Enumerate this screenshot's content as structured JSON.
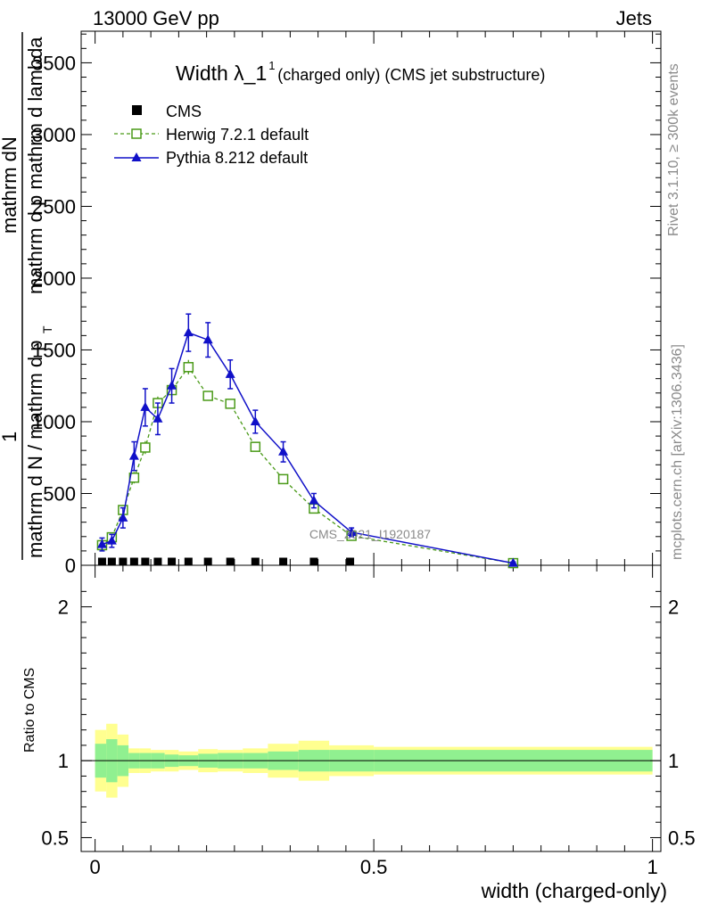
{
  "header": {
    "left": "13000 GeV pp",
    "right": "Jets"
  },
  "side": {
    "rivet": "Rivet 3.1.10, ≥ 300k events",
    "mcplots": "mcplots.cern.ch [arXiv:1306.3436]"
  },
  "colors": {
    "herwig": "#4a9a18",
    "pythia": "#1010c8",
    "band_inner": "#90f090",
    "band_outer": "#ffff90",
    "cms": "#000000"
  },
  "chart_data": [
    {
      "type": "line",
      "title_main": "Width λ_1",
      "title_sup": "1",
      "title_rest": "(charged only) (CMS jet substructure)",
      "ylabel_top": "mathrm dN",
      "ylabel_top2": "mathrm d p mathrm d lambda",
      "ylabel_bottom": "mathrm d N / mathrm d p",
      "ylabel_bottom_sub": "T",
      "ylabel_one": "1",
      "xlabel": "",
      "watermark": "CMS_2021_I1920187",
      "xlim": [
        -0.025,
        1.015
      ],
      "ylim": [
        0,
        3720
      ],
      "yticks": [
        {
          "v": 0,
          "label": "0"
        },
        {
          "v": 500,
          "label": "500"
        },
        {
          "v": 1000,
          "label": "1000"
        },
        {
          "v": 1500,
          "label": "1500"
        },
        {
          "v": 2000,
          "label": "2000"
        },
        {
          "v": 2500,
          "label": "2500"
        },
        {
          "v": 3000,
          "label": "3000"
        },
        {
          "v": 3500,
          "label": "3500"
        }
      ],
      "legend": [
        {
          "name": "CMS",
          "marker": "square-filled"
        },
        {
          "name": "Herwig 7.2.1 default",
          "marker": "square-open"
        },
        {
          "name": "Pythia 8.212 default",
          "marker": "triangle"
        }
      ],
      "series": [
        {
          "name": "CMS",
          "x": [
            0.0125,
            0.03,
            0.05,
            0.07,
            0.09,
            0.1125,
            0.1375,
            0.1675,
            0.2025,
            0.2425,
            0.2875,
            0.3375,
            0.3925,
            0.4575
          ],
          "y": [
            0,
            0,
            0,
            0,
            0,
            0,
            0,
            0,
            0,
            0,
            0,
            0,
            0,
            0
          ]
        },
        {
          "name": "Herwig 7.2.1 default",
          "x": [
            0.0125,
            0.03,
            0.05,
            0.07,
            0.09,
            0.1125,
            0.1375,
            0.1675,
            0.2025,
            0.2425,
            0.2875,
            0.3375,
            0.3925,
            0.46,
            0.75
          ],
          "y": [
            140,
            195,
            385,
            610,
            820,
            1130,
            1220,
            1380,
            1180,
            1125,
            825,
            600,
            395,
            205,
            15
          ],
          "err": [
            25,
            25,
            35,
            40,
            45,
            45,
            50,
            50,
            30,
            30,
            25,
            20,
            20,
            15,
            8
          ]
        },
        {
          "name": "Pythia 8.212 default",
          "x": [
            0.0125,
            0.03,
            0.05,
            0.07,
            0.09,
            0.1125,
            0.1375,
            0.1675,
            0.2025,
            0.2425,
            0.2875,
            0.3375,
            0.3925,
            0.46,
            0.75
          ],
          "y": [
            145,
            170,
            330,
            760,
            1100,
            1020,
            1250,
            1620,
            1570,
            1330,
            1000,
            790,
            450,
            230,
            15
          ],
          "err": [
            45,
            45,
            70,
            100,
            130,
            110,
            120,
            130,
            120,
            100,
            80,
            70,
            50,
            30,
            8
          ]
        }
      ]
    },
    {
      "type": "area",
      "ylabel": "Ratio to CMS",
      "xlabel": "width (charged-only)",
      "xlim": [
        -0.025,
        1.015
      ],
      "ylim": [
        0.41,
        2.27
      ],
      "yticks": [
        {
          "v": 0.5,
          "label": "0.5"
        },
        {
          "v": 1,
          "label": "1"
        },
        {
          "v": 2,
          "label": "2"
        }
      ],
      "xticks": [
        {
          "v": 0,
          "label": "0"
        },
        {
          "v": 0.5,
          "label": "0.5"
        },
        {
          "v": 1,
          "label": "1"
        }
      ],
      "bins": [
        0,
        0.02,
        0.04,
        0.06,
        0.08,
        0.1,
        0.125,
        0.15,
        0.185,
        0.22,
        0.265,
        0.31,
        0.365,
        0.42,
        0.5,
        1.0
      ],
      "inner": [
        0.11,
        0.14,
        0.1,
        0.05,
        0.05,
        0.05,
        0.04,
        0.035,
        0.045,
        0.05,
        0.05,
        0.06,
        0.07,
        0.07,
        0.07
      ],
      "outer": [
        0.2,
        0.24,
        0.17,
        0.08,
        0.08,
        0.07,
        0.07,
        0.06,
        0.075,
        0.07,
        0.08,
        0.11,
        0.13,
        0.1,
        0.09
      ]
    }
  ]
}
